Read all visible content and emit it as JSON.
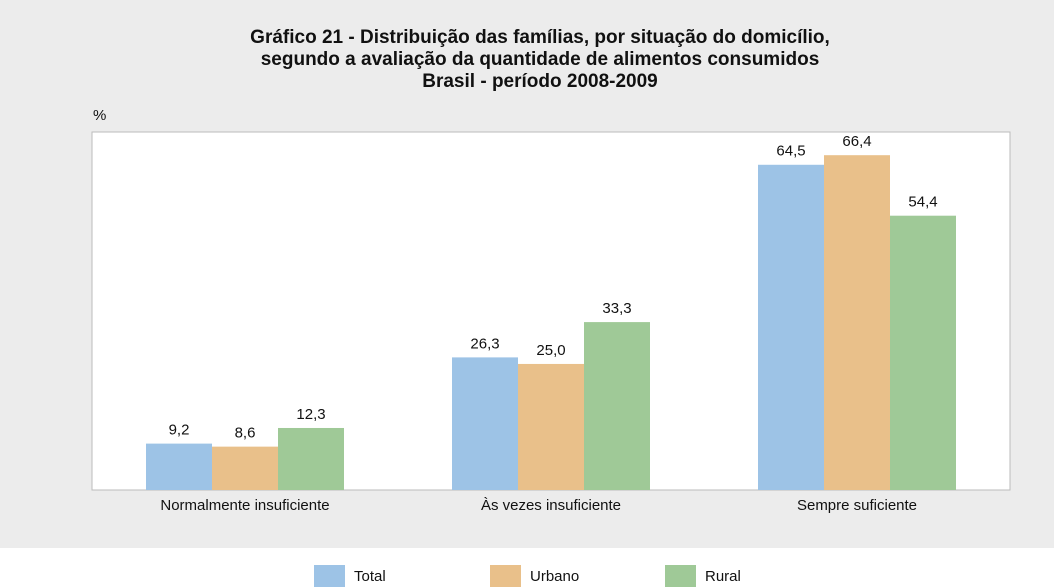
{
  "chart_data": {
    "type": "bar",
    "title": [
      "Gráfico 21 - Distribuição das famílias, por situação do domicílio,",
      "segundo a avaliação da quantidade de alimentos consumidos",
      "Brasil - período 2008-2009"
    ],
    "y_label": "%",
    "categories": [
      "Normalmente insuficiente",
      "Às vezes insuficiente",
      "Sempre suficiente"
    ],
    "series": [
      {
        "name": "Total",
        "color": "#9dc3e6",
        "values": [
          9.2,
          26.3,
          64.5
        ],
        "value_labels": [
          "9,2",
          "26,3",
          "64,5"
        ]
      },
      {
        "name": "Urbano",
        "color": "#e9c08a",
        "values": [
          8.6,
          25.0,
          66.4
        ],
        "value_labels": [
          "8,6",
          "25,0",
          "66,4"
        ]
      },
      {
        "name": "Rural",
        "color": "#9fc997",
        "values": [
          12.3,
          33.3,
          54.4
        ],
        "value_labels": [
          "12,3",
          "33,3",
          "54,4"
        ]
      }
    ],
    "ylim": [
      0,
      71
    ],
    "legend": "bottom"
  }
}
